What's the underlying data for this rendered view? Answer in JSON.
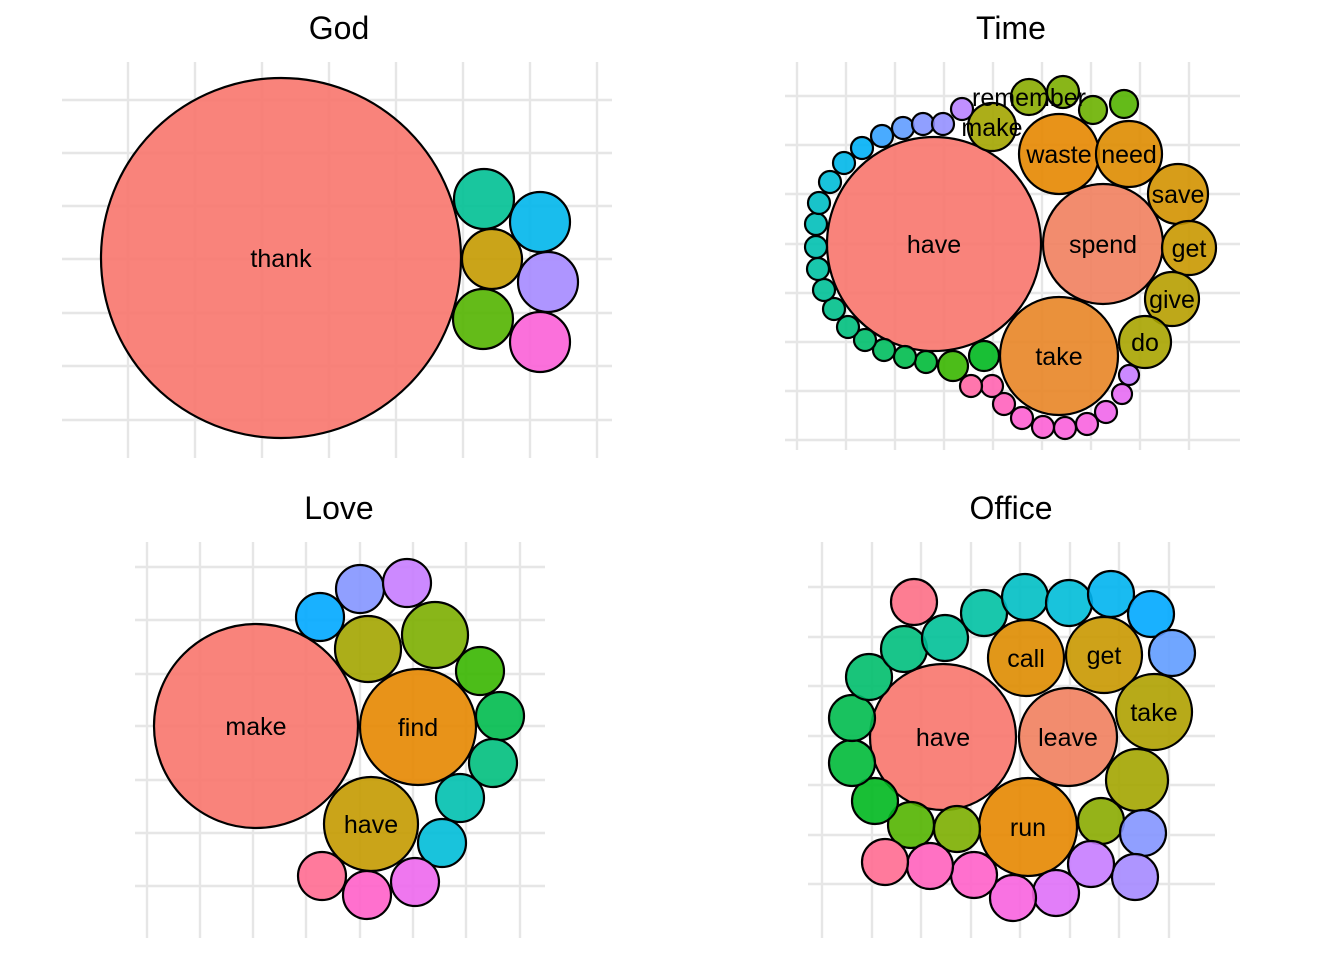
{
  "chart_data": [
    {
      "type": "bubble",
      "title": "God",
      "xlabel": "",
      "ylabel": "",
      "grid": true,
      "legend": "none",
      "bubbles": [
        {
          "label": "thank",
          "size": 32400,
          "color": "#F8766D"
        },
        {
          "label": "",
          "size": 900,
          "color": "#C49A00"
        },
        {
          "label": "",
          "size": 900,
          "color": "#53B400"
        },
        {
          "label": "",
          "size": 900,
          "color": "#00C094"
        },
        {
          "label": "",
          "size": 900,
          "color": "#00B6EB"
        },
        {
          "label": "",
          "size": 900,
          "color": "#A58AFF"
        },
        {
          "label": "",
          "size": 900,
          "color": "#FB61D7"
        }
      ]
    },
    {
      "type": "bubble",
      "title": "Time",
      "xlabel": "",
      "ylabel": "",
      "grid": true,
      "legend": "none",
      "bubbles": [
        {
          "label": "have",
          "size": 11449,
          "color": "#F8766D"
        },
        {
          "label": "spend",
          "size": 3600,
          "color": "#F17F5E"
        },
        {
          "label": "take",
          "size": 3481,
          "color": "#E88526"
        },
        {
          "label": "waste",
          "size": 1600,
          "color": "#E58700"
        },
        {
          "label": "need",
          "size": 1089,
          "color": "#DE8C00"
        },
        {
          "label": "save",
          "size": 900,
          "color": "#D39200"
        },
        {
          "label": "get",
          "size": 729,
          "color": "#C99800"
        },
        {
          "label": "give",
          "size": 729,
          "color": "#B79F00"
        },
        {
          "label": "do",
          "size": 676,
          "color": "#A9A400"
        },
        {
          "label": "make",
          "size": 576,
          "color": "#A3A500"
        },
        {
          "label": "remember",
          "size": 324,
          "color": "#8AAB00"
        },
        {
          "label": "",
          "size": 256,
          "color": "#7CAE00"
        },
        {
          "label": "",
          "size": 196,
          "color": "#6BB100"
        },
        {
          "label": "",
          "size": 196,
          "color": "#53B400"
        },
        {
          "label": "",
          "size": 225,
          "color": "#39B600"
        },
        {
          "label": "",
          "size": 225,
          "color": "#00B81F"
        },
        {
          "label": "",
          "size": 121,
          "color": "#00BA38"
        },
        {
          "label": "",
          "size": 121,
          "color": "#00BB4E"
        },
        {
          "label": "",
          "size": 121,
          "color": "#00BC5E"
        },
        {
          "label": "",
          "size": 121,
          "color": "#00BE6C"
        },
        {
          "label": "",
          "size": 121,
          "color": "#00BF7D"
        },
        {
          "label": "",
          "size": 121,
          "color": "#00C08B"
        },
        {
          "label": "",
          "size": 121,
          "color": "#00C097"
        },
        {
          "label": "",
          "size": 121,
          "color": "#00C1A3"
        },
        {
          "label": "",
          "size": 121,
          "color": "#00C0AF"
        },
        {
          "label": "",
          "size": 121,
          "color": "#00BFBA"
        },
        {
          "label": "",
          "size": 121,
          "color": "#00BDC4"
        },
        {
          "label": "",
          "size": 121,
          "color": "#00BCD8"
        },
        {
          "label": "",
          "size": 121,
          "color": "#00B7E9"
        },
        {
          "label": "",
          "size": 121,
          "color": "#00B0F6"
        },
        {
          "label": "",
          "size": 121,
          "color": "#35A2FF"
        },
        {
          "label": "",
          "size": 121,
          "color": "#619CFF"
        },
        {
          "label": "",
          "size": 121,
          "color": "#8495FF"
        },
        {
          "label": "",
          "size": 121,
          "color": "#9590FF"
        },
        {
          "label": "",
          "size": 121,
          "color": "#B983FF"
        },
        {
          "label": "",
          "size": 100,
          "color": "#C77CFF"
        },
        {
          "label": "",
          "size": 100,
          "color": "#E76BF3"
        },
        {
          "label": "",
          "size": 121,
          "color": "#F066EA"
        },
        {
          "label": "",
          "size": 121,
          "color": "#F863DF"
        },
        {
          "label": "",
          "size": 121,
          "color": "#FA62DB"
        },
        {
          "label": "",
          "size": 121,
          "color": "#FC61D5"
        },
        {
          "label": "",
          "size": 121,
          "color": "#FD61D1"
        },
        {
          "label": "",
          "size": 121,
          "color": "#FF62BC"
        },
        {
          "label": "",
          "size": 121,
          "color": "#FF64B0"
        },
        {
          "label": "",
          "size": 121,
          "color": "#FF67A4"
        },
        {
          "label": "",
          "size": 121,
          "color": "#FF6C91"
        }
      ]
    },
    {
      "type": "bubble",
      "title": "Love",
      "xlabel": "",
      "ylabel": "",
      "grid": true,
      "legend": "none",
      "bubbles": [
        {
          "label": "make",
          "size": 10404,
          "color": "#F8766D"
        },
        {
          "label": "find",
          "size": 3364,
          "color": "#E58700"
        },
        {
          "label": "have",
          "size": 2209,
          "color": "#C49A00"
        },
        {
          "label": "",
          "size": 1089,
          "color": "#A3A500"
        },
        {
          "label": "",
          "size": 1089,
          "color": "#7CAE00"
        },
        {
          "label": "",
          "size": 576,
          "color": "#39B600"
        },
        {
          "label": "",
          "size": 576,
          "color": "#00BB4E"
        },
        {
          "label": "",
          "size": 576,
          "color": "#00BF7D"
        },
        {
          "label": "",
          "size": 576,
          "color": "#00C0AF"
        },
        {
          "label": "",
          "size": 576,
          "color": "#00BCD8"
        },
        {
          "label": "",
          "size": 576,
          "color": "#00A9FF"
        },
        {
          "label": "",
          "size": 576,
          "color": "#8495FF"
        },
        {
          "label": "",
          "size": 576,
          "color": "#C77CFF"
        },
        {
          "label": "",
          "size": 576,
          "color": "#ED68ED"
        },
        {
          "label": "",
          "size": 576,
          "color": "#FF61C9"
        },
        {
          "label": "",
          "size": 576,
          "color": "#FF6C91"
        }
      ]
    },
    {
      "type": "bubble",
      "title": "Office",
      "xlabel": "",
      "ylabel": "",
      "grid": true,
      "legend": "none",
      "bubbles": [
        {
          "label": "have",
          "size": 5329,
          "color": "#F8766D"
        },
        {
          "label": "leave",
          "size": 2401,
          "color": "#F17F5E"
        },
        {
          "label": "run",
          "size": 2401,
          "color": "#E58700"
        },
        {
          "label": "call",
          "size": 1444,
          "color": "#DE8C00"
        },
        {
          "label": "get",
          "size": 1444,
          "color": "#C99800"
        },
        {
          "label": "take",
          "size": 1444,
          "color": "#AFA100"
        },
        {
          "label": "",
          "size": 961,
          "color": "#A3A500"
        },
        {
          "label": "",
          "size": 529,
          "color": "#8AAB00"
        },
        {
          "label": "",
          "size": 529,
          "color": "#7CAE00"
        },
        {
          "label": "",
          "size": 529,
          "color": "#53B400"
        },
        {
          "label": "",
          "size": 529,
          "color": "#00B81F"
        },
        {
          "label": "",
          "size": 529,
          "color": "#00BA38"
        },
        {
          "label": "",
          "size": 529,
          "color": "#00BB4E"
        },
        {
          "label": "",
          "size": 529,
          "color": "#00BE6C"
        },
        {
          "label": "",
          "size": 529,
          "color": "#00BF7D"
        },
        {
          "label": "",
          "size": 529,
          "color": "#00C097"
        },
        {
          "label": "",
          "size": 529,
          "color": "#00C1A3"
        },
        {
          "label": "",
          "size": 529,
          "color": "#00BFC4"
        },
        {
          "label": "",
          "size": 529,
          "color": "#00BCD8"
        },
        {
          "label": "",
          "size": 529,
          "color": "#00B4F0"
        },
        {
          "label": "",
          "size": 529,
          "color": "#00A9FF"
        },
        {
          "label": "",
          "size": 529,
          "color": "#619CFF"
        },
        {
          "label": "",
          "size": 529,
          "color": "#8495FF"
        },
        {
          "label": "",
          "size": 529,
          "color": "#A58AFF"
        },
        {
          "label": "",
          "size": 529,
          "color": "#C77CFF"
        },
        {
          "label": "",
          "size": 529,
          "color": "#DF70F8"
        },
        {
          "label": "",
          "size": 529,
          "color": "#F863DF"
        },
        {
          "label": "",
          "size": 529,
          "color": "#FF61C9"
        },
        {
          "label": "",
          "size": 529,
          "color": "#FF62BC"
        },
        {
          "label": "",
          "size": 529,
          "color": "#FF6C91"
        },
        {
          "label": "",
          "size": 529,
          "color": "#FD6F86"
        }
      ]
    }
  ]
}
